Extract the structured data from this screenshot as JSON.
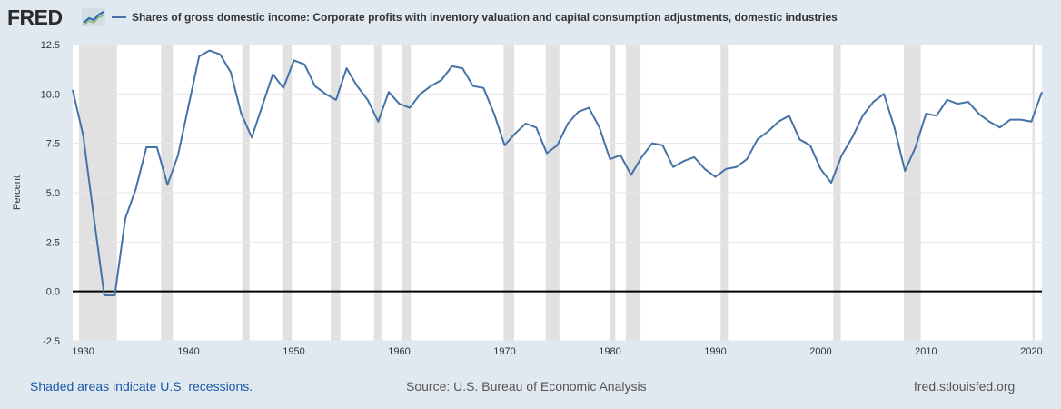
{
  "header": {
    "logo_text": "FRED",
    "title": "Shares of gross domestic income: Corporate profits with inventory valuation and capital consumption adjustments, domestic industries"
  },
  "footer": {
    "recession_note": "Shaded areas indicate U.S. recessions.",
    "source": "Source: U.S. Bureau of Economic Analysis",
    "site": "fred.stlouisfed.org"
  },
  "colors": {
    "background": "#e1e9f0",
    "plot": "#ffffff",
    "series": "#4572a7",
    "recession": "#e1e1e1",
    "zero_line": "#000000",
    "link": "#1a5aa8"
  },
  "chart_data": {
    "type": "line",
    "title": "Shares of gross domestic income: Corporate profits with inventory valuation and capital consumption adjustments, domestic industries",
    "xlabel": "",
    "ylabel": "Percent",
    "xlim": [
      1929,
      2021
    ],
    "ylim": [
      -2.5,
      12.5
    ],
    "yticks": [
      -2.5,
      0.0,
      2.5,
      5.0,
      7.5,
      10.0,
      12.5
    ],
    "ytick_labels": [
      "-2.5",
      "0.0",
      "2.5",
      "5.0",
      "7.5",
      "10.0",
      "12.5"
    ],
    "xticks": [
      1930,
      1940,
      1950,
      1960,
      1970,
      1980,
      1990,
      2000,
      2010,
      2020
    ],
    "xtick_labels": [
      "1930",
      "1940",
      "1950",
      "1960",
      "1970",
      "1980",
      "1990",
      "2000",
      "2010",
      "2020"
    ],
    "grid": true,
    "legend": "top-left",
    "recessions": [
      [
        1929.6,
        1933.2
      ],
      [
        1937.4,
        1938.5
      ],
      [
        1945.1,
        1945.8
      ],
      [
        1948.9,
        1949.8
      ],
      [
        1953.5,
        1954.4
      ],
      [
        1957.6,
        1958.3
      ],
      [
        1960.3,
        1961.1
      ],
      [
        1969.9,
        1970.9
      ],
      [
        1973.9,
        1975.2
      ],
      [
        1980.0,
        1980.5
      ],
      [
        1981.5,
        1982.9
      ],
      [
        1990.5,
        1991.2
      ],
      [
        2001.2,
        2001.9
      ],
      [
        2007.9,
        2009.5
      ],
      [
        2020.1,
        2020.3
      ]
    ],
    "series": [
      {
        "name": "Shares of gross domestic income: Corporate profits with inventory valuation and capital consumption adjustments, domestic industries",
        "x": [
          1929,
          1930,
          1931,
          1932,
          1933,
          1934,
          1935,
          1936,
          1937,
          1938,
          1939,
          1940,
          1941,
          1942,
          1943,
          1944,
          1945,
          1946,
          1947,
          1948,
          1949,
          1950,
          1951,
          1952,
          1953,
          1954,
          1955,
          1956,
          1957,
          1958,
          1959,
          1960,
          1961,
          1962,
          1963,
          1964,
          1965,
          1966,
          1967,
          1968,
          1969,
          1970,
          1971,
          1972,
          1973,
          1974,
          1975,
          1976,
          1977,
          1978,
          1979,
          1980,
          1981,
          1982,
          1983,
          1984,
          1985,
          1986,
          1987,
          1988,
          1989,
          1990,
          1991,
          1992,
          1993,
          1994,
          1995,
          1996,
          1997,
          1998,
          1999,
          2000,
          2001,
          2002,
          2003,
          2004,
          2005,
          2006,
          2007,
          2008,
          2009,
          2010,
          2011,
          2012,
          2013,
          2014,
          2015,
          2016,
          2017,
          2018,
          2019,
          2020,
          2021
        ],
        "values": [
          10.2,
          7.9,
          3.8,
          -0.2,
          -0.2,
          3.7,
          5.2,
          7.3,
          7.3,
          5.4,
          6.9,
          9.4,
          11.9,
          12.2,
          12.0,
          11.1,
          9.0,
          7.8,
          9.4,
          11.0,
          10.3,
          11.7,
          11.5,
          10.4,
          10.0,
          9.7,
          11.3,
          10.4,
          9.7,
          8.6,
          10.1,
          9.5,
          9.3,
          10.0,
          10.4,
          10.7,
          11.4,
          11.3,
          10.4,
          10.3,
          9.0,
          7.4,
          8.0,
          8.5,
          8.3,
          7.0,
          7.4,
          8.5,
          9.1,
          9.3,
          8.3,
          6.7,
          6.9,
          5.9,
          6.8,
          7.5,
          7.4,
          6.3,
          6.6,
          6.8,
          6.2,
          5.8,
          6.2,
          6.3,
          6.7,
          7.7,
          8.1,
          8.6,
          8.9,
          7.7,
          7.4,
          6.2,
          5.5,
          6.9,
          7.8,
          8.9,
          9.6,
          10.0,
          8.3,
          6.1,
          7.3,
          9.0,
          8.9,
          9.7,
          9.5,
          9.6,
          9.0,
          8.6,
          8.3,
          8.7,
          8.7,
          8.6,
          10.1
        ]
      }
    ]
  }
}
